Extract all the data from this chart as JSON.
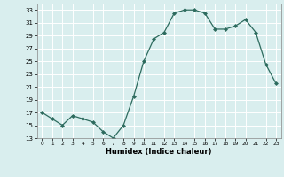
{
  "x": [
    0,
    1,
    2,
    3,
    4,
    5,
    6,
    7,
    8,
    9,
    10,
    11,
    12,
    13,
    14,
    15,
    16,
    17,
    18,
    19,
    20,
    21,
    22,
    23
  ],
  "y": [
    17,
    16,
    15,
    16.5,
    16,
    15.5,
    14,
    13,
    15,
    19.5,
    25,
    28.5,
    29.5,
    32.5,
    33,
    33,
    32.5,
    30,
    30,
    30.5,
    31.5,
    29.5,
    24.5,
    21.5
  ],
  "line_color": "#2d6b5e",
  "marker": "D",
  "marker_size": 2.0,
  "bg_color": "#d9eeee",
  "grid_color": "#ffffff",
  "xlabel": "Humidex (Indice chaleur)",
  "xlim": [
    -0.5,
    23.5
  ],
  "ylim": [
    13,
    34
  ],
  "yticks": [
    13,
    15,
    17,
    19,
    21,
    23,
    25,
    27,
    29,
    31,
    33
  ],
  "xticks": [
    0,
    1,
    2,
    3,
    4,
    5,
    6,
    7,
    8,
    9,
    10,
    11,
    12,
    13,
    14,
    15,
    16,
    17,
    18,
    19,
    20,
    21,
    22,
    23
  ],
  "title": ""
}
